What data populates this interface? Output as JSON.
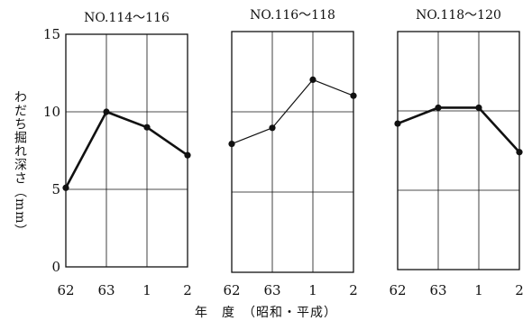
{
  "chart_data": [
    {
      "type": "line",
      "title": "NO.114～116",
      "categories": [
        "62",
        "63",
        "1",
        "2"
      ],
      "values": [
        5.1,
        10,
        9,
        7.2
      ],
      "ylim": [
        0,
        15
      ],
      "yticks": [
        0,
        5,
        10,
        15
      ],
      "line_style": "bold",
      "grid": true
    },
    {
      "type": "line",
      "title": "NO.116～118",
      "categories": [
        "62",
        "63",
        "1",
        "2"
      ],
      "values": [
        8,
        9,
        12,
        11
      ],
      "ylim": [
        0,
        15
      ],
      "yticks": [
        0,
        5,
        10,
        15
      ],
      "line_style": "thin",
      "grid": true
    },
    {
      "type": "line",
      "title": "NO.118～120",
      "categories": [
        "62",
        "63",
        "1",
        "2"
      ],
      "values": [
        9.2,
        10.2,
        10.2,
        7.4
      ],
      "ylim": [
        0,
        15
      ],
      "yticks": [
        0,
        5,
        10,
        15
      ],
      "line_style": "bold",
      "grid": true
    }
  ],
  "ylabel": "わだち掘れ深さ（mm）",
  "xlabel": "年　度　（昭和・平成）",
  "colors": {
    "line": "#111111",
    "frame": "#111111",
    "grid": "#111111"
  }
}
